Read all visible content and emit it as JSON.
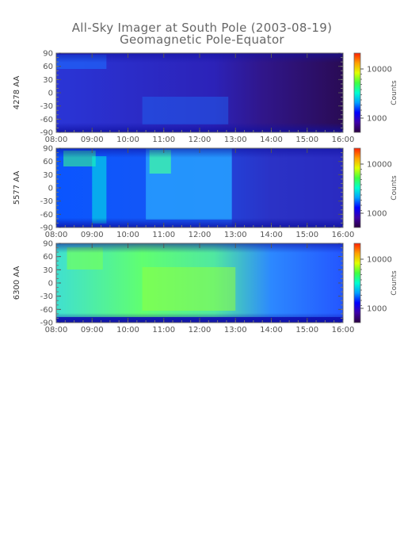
{
  "chart_data": {
    "type": "heatmap",
    "title": "All-Sky Imager at South Pole (2003-08-19)",
    "subtitle": "Geomagnetic Pole-Equator",
    "x_tick_labels": [
      "08:00",
      "09:00",
      "10:00",
      "11:00",
      "12:00",
      "13:00",
      "14:00",
      "15:00",
      "16:00"
    ],
    "xlim": [
      "08:00",
      "16:00"
    ],
    "y_tick_labels": [
      "90",
      "60",
      "30",
      "0",
      "-30",
      "-60",
      "-90"
    ],
    "ylim": [
      -90,
      90
    ],
    "colorbar": {
      "label": "Counts",
      "scale": "log",
      "tick_labels": [
        "10000",
        "1000"
      ],
      "colors": [
        "#2a0040",
        "#3d00a8",
        "#0000ff",
        "#00a0ff",
        "#00ffd0",
        "#40ff40",
        "#e0ff00",
        "#ffa000",
        "#ff2000"
      ]
    },
    "panels": [
      {
        "ylabel": "4278 AA"
      },
      {
        "ylabel": "5577 AA"
      },
      {
        "ylabel": "6300 AA"
      }
    ]
  }
}
